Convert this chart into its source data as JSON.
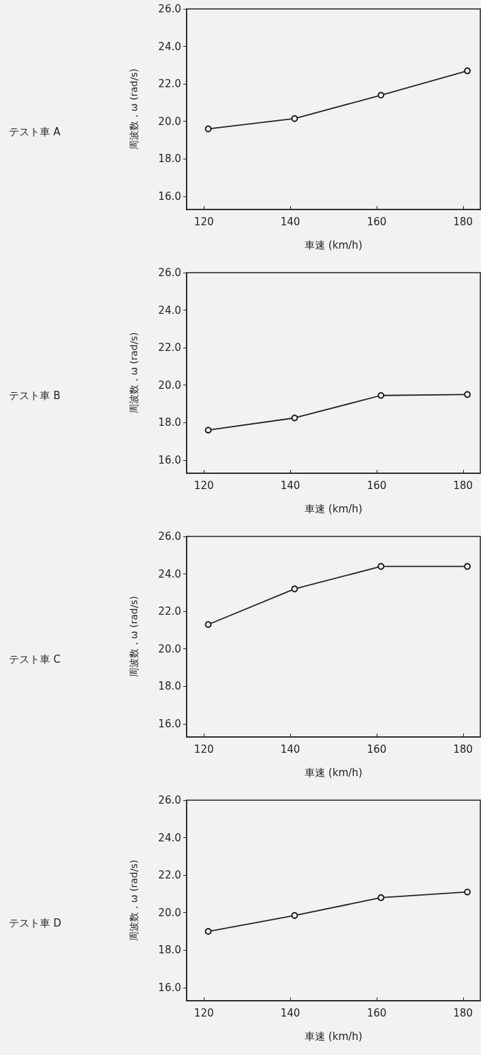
{
  "chart_data": [
    {
      "type": "line",
      "annotations": [
        "テスト車 A"
      ],
      "xlabel": "車速 (km/h)",
      "ylabel": "周波数，ω (rad/s)",
      "x": [
        121,
        141,
        161,
        181
      ],
      "series": [
        {
          "color": "#222222",
          "values": [
            19.6,
            20.15,
            21.4,
            22.7
          ]
        }
      ],
      "xlim": [
        116,
        184
      ],
      "xticks": [
        120,
        140,
        160,
        180
      ],
      "ylim": [
        15.3,
        26
      ],
      "yticks": [
        {
          "value": 16,
          "label": "16.0"
        },
        {
          "value": 18,
          "label": "18.0"
        },
        {
          "value": 20,
          "label": "20.0"
        },
        {
          "value": 22,
          "label": "22.0"
        },
        {
          "value": 24,
          "label": "24.0"
        },
        {
          "value": 26,
          "label": "26.0"
        }
      ],
      "grid": false,
      "marker": "circle",
      "line_style": "solid"
    },
    {
      "type": "line",
      "annotations": [
        "テスト車 B"
      ],
      "xlabel": "車速 (km/h)",
      "ylabel": "周波数，ω (rad/s)",
      "x": [
        121,
        141,
        161,
        181
      ],
      "series": [
        {
          "color": "#222222",
          "values": [
            17.6,
            18.25,
            19.45,
            19.5
          ]
        }
      ],
      "xlim": [
        116,
        184
      ],
      "xticks": [
        120,
        140,
        160,
        180
      ],
      "ylim": [
        15.3,
        26
      ],
      "yticks": [
        {
          "value": 16,
          "label": "16.0"
        },
        {
          "value": 18,
          "label": "18.0"
        },
        {
          "value": 20,
          "label": "20.0"
        },
        {
          "value": 22,
          "label": "22.0"
        },
        {
          "value": 24,
          "label": "24.0"
        },
        {
          "value": 26,
          "label": "26.0"
        }
      ],
      "grid": false,
      "marker": "circle",
      "line_style": "solid"
    },
    {
      "type": "line",
      "annotations": [
        "テスト車 C"
      ],
      "xlabel": "車速 (km/h)",
      "ylabel": "周波数，ω (rad/s)",
      "x": [
        121,
        141,
        161,
        181
      ],
      "series": [
        {
          "color": "#222222",
          "values": [
            21.3,
            23.2,
            24.4,
            24.4
          ]
        }
      ],
      "xlim": [
        116,
        184
      ],
      "xticks": [
        120,
        140,
        160,
        180
      ],
      "ylim": [
        15.3,
        26
      ],
      "yticks": [
        {
          "value": 16,
          "label": "16.0"
        },
        {
          "value": 18,
          "label": "18.0"
        },
        {
          "value": 20,
          "label": "20.0"
        },
        {
          "value": 22,
          "label": "22.0"
        },
        {
          "value": 24,
          "label": "24.0"
        },
        {
          "value": 26,
          "label": "26.0"
        }
      ],
      "grid": false,
      "marker": "circle",
      "line_style": "solid"
    },
    {
      "type": "line",
      "annotations": [
        "テスト車 D"
      ],
      "xlabel": "車速 (km/h)",
      "ylabel": "周波数，ω (rad/s)",
      "x": [
        121,
        141,
        161,
        181
      ],
      "series": [
        {
          "color": "#222222",
          "values": [
            19.0,
            19.85,
            20.8,
            21.1
          ]
        }
      ],
      "xlim": [
        116,
        184
      ],
      "xticks": [
        120,
        140,
        160,
        180
      ],
      "ylim": [
        15.3,
        26
      ],
      "yticks": [
        {
          "value": 16,
          "label": "16.0"
        },
        {
          "value": 18,
          "label": "18.0"
        },
        {
          "value": 20,
          "label": "20.0"
        },
        {
          "value": 22,
          "label": "22.0"
        },
        {
          "value": 24,
          "label": "24.0"
        },
        {
          "value": 26,
          "label": "26.0"
        }
      ],
      "grid": false,
      "marker": "circle",
      "line_style": "solid"
    }
  ]
}
